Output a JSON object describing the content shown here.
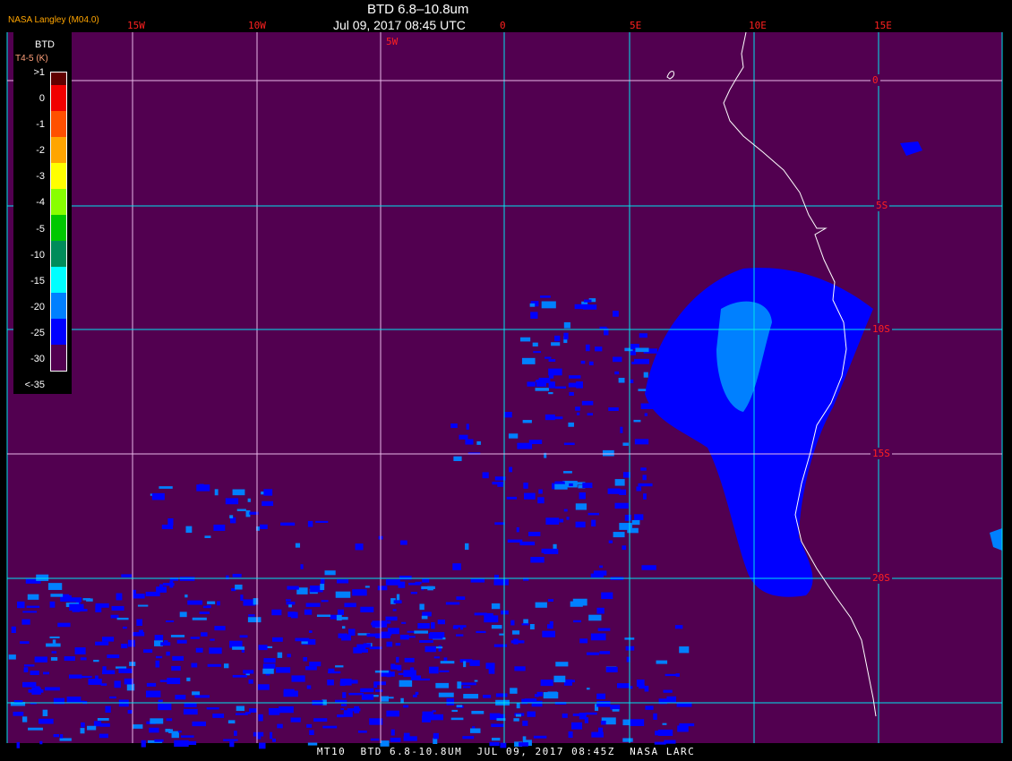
{
  "header": {
    "title": "BTD 6.8–10.8um",
    "datetime": "Jul 09, 2017 08:45 UTC",
    "organization": "NASA Langley (M04.0)"
  },
  "longitude_labels": [
    "15W",
    "10W",
    "5W",
    "0",
    "5E",
    "10E",
    "15E"
  ],
  "latitude_labels": [
    "0",
    "5S",
    "10S",
    "15S",
    "20S"
  ],
  "legend": {
    "title": "BTD",
    "unit": "T4-5 (K)",
    "labels": [
      ">1",
      "0",
      "-1",
      "-2",
      "-3",
      "-4",
      "-5",
      "-10",
      "-15",
      "-20",
      "-25",
      "-30",
      "<-35"
    ],
    "colors": [
      "#600000",
      "#f00000",
      "#ff5000",
      "#ffa500",
      "#ffff00",
      "#88ff00",
      "#00c800",
      "#008c5a",
      "#00ffff",
      "#0080ff",
      "#0000ff",
      "#520050"
    ]
  },
  "colors": {
    "background": "#520050",
    "cloud_low": "#0000ff",
    "cloud_mid": "#0080ff",
    "cloud_high": "#00ffff",
    "grid_primary": "#00e5ee",
    "grid_secondary": "#e8b8e8",
    "coastline": "#ffffff"
  },
  "footer": "MT10  BTD 6.8-10.8UM  JUL 09, 2017 08:45Z  NASA LARC"
}
